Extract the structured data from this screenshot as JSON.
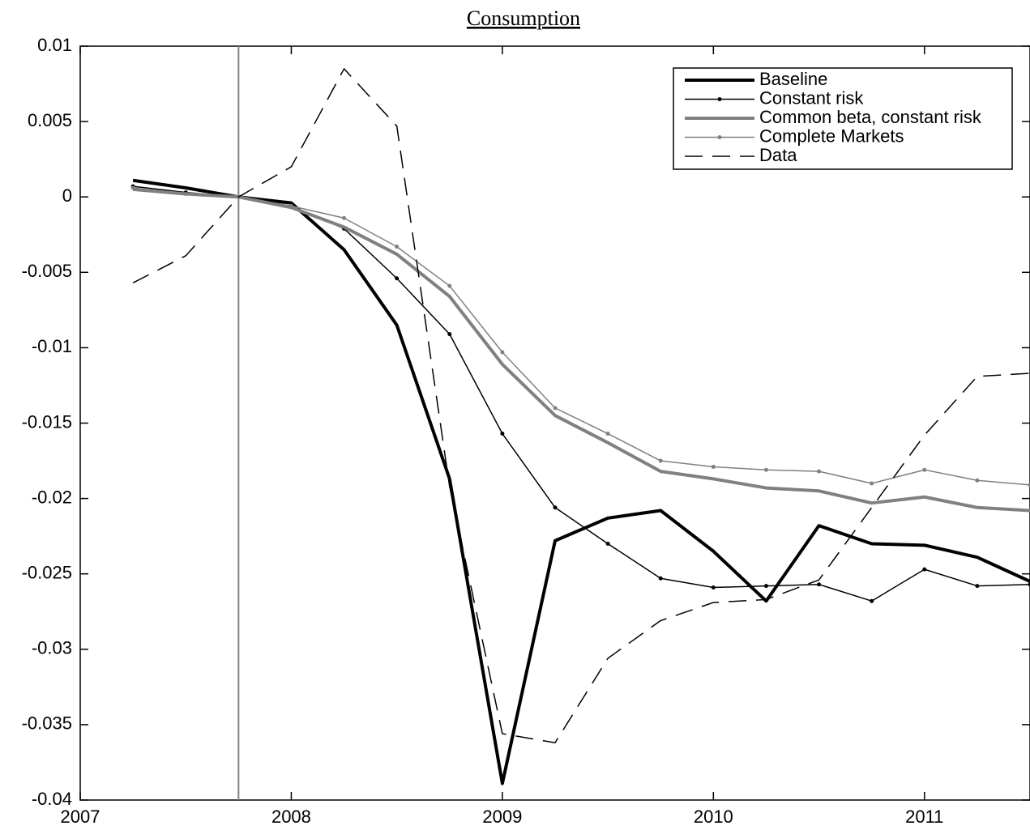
{
  "chart_data": {
    "type": "line",
    "title": "Consumption",
    "x": [
      2007.25,
      2007.5,
      2007.75,
      2008,
      2008.25,
      2008.5,
      2008.75,
      2009,
      2009.25,
      2009.5,
      2009.75,
      2010,
      2010.25,
      2010.5,
      2010.75,
      2011,
      2011.25,
      2011.5
    ],
    "series": [
      {
        "name": "Baseline",
        "color": "#000000",
        "width": 4,
        "markers": false,
        "dash": false,
        "values": [
          0.0011,
          0.0006,
          0,
          -0.0004,
          -0.0035,
          -0.0085,
          -0.0187,
          -0.0389,
          -0.0228,
          -0.0213,
          -0.0208,
          -0.0235,
          -0.0268,
          -0.0218,
          -0.023,
          -0.0231,
          -0.0239,
          -0.0255
        ]
      },
      {
        "name": "Constant risk",
        "color": "#000000",
        "width": 1.5,
        "markers": true,
        "dash": false,
        "values": [
          0.0007,
          0.0003,
          0,
          -0.0006,
          -0.0021,
          -0.0054,
          -0.0091,
          -0.0157,
          -0.0206,
          -0.023,
          -0.0253,
          -0.0259,
          -0.0258,
          -0.0257,
          -0.0268,
          -0.0247,
          -0.0258,
          -0.0257
        ]
      },
      {
        "name": "Common beta, constant risk",
        "color": "#808080",
        "width": 4,
        "markers": false,
        "dash": false,
        "values": [
          0.0005,
          0.0002,
          0,
          -0.0007,
          -0.002,
          -0.0038,
          -0.0066,
          -0.0111,
          -0.0145,
          -0.0163,
          -0.0182,
          -0.0187,
          -0.0193,
          -0.0195,
          -0.0203,
          -0.0199,
          -0.0206,
          -0.0208
        ]
      },
      {
        "name": "Complete Markets",
        "color": "#808080",
        "width": 1.5,
        "markers": true,
        "dash": false,
        "values": [
          0.0006,
          0.0002,
          0,
          -0.0006,
          -0.0014,
          -0.0033,
          -0.0059,
          -0.0103,
          -0.014,
          -0.0157,
          -0.0175,
          -0.0179,
          -0.0181,
          -0.0182,
          -0.019,
          -0.0181,
          -0.0188,
          -0.0191
        ]
      },
      {
        "name": "Data",
        "color": "#000000",
        "width": 1.5,
        "markers": false,
        "dash": true,
        "values": [
          -0.0057,
          -0.0039,
          0,
          0.002,
          0.0085,
          0.0047,
          -0.0192,
          -0.0356,
          -0.0362,
          -0.0306,
          -0.0281,
          -0.0269,
          -0.0267,
          -0.0254,
          -0.0206,
          -0.0158,
          -0.0119,
          -0.0117
        ]
      }
    ],
    "vline": 2007.75,
    "xlim": [
      2007,
      2011.5
    ],
    "xticks": [
      2007,
      2008,
      2009,
      2010,
      2011
    ],
    "ylim": [
      -0.04,
      0.01
    ],
    "yticks": [
      0.01,
      0.005,
      0,
      -0.005,
      -0.01,
      -0.015,
      -0.02,
      -0.025,
      -0.03,
      -0.035,
      -0.04
    ],
    "legend": "upper-right"
  }
}
